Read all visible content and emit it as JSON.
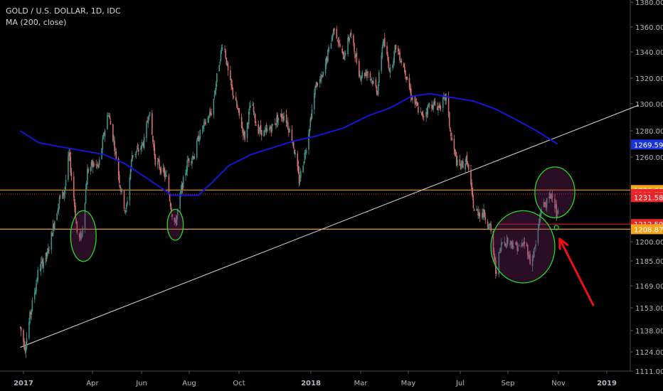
{
  "header": {
    "symbol_title": "GOLD / U.S. DOLLAR, 1D, IDC",
    "indicator_label": "MA (200, close)"
  },
  "colors": {
    "background": "#000000",
    "candle_up": "#3f8f86",
    "candle_down": "#d06e6e",
    "ma_line": "#1515d6",
    "trend_line": "#c8c8c8",
    "support_line": "#e69a2e",
    "annotation_circle": "#22dd22",
    "arrow": "#ee1111",
    "axis_text": "#b2b5be"
  },
  "chart_data": {
    "type": "candlestick",
    "title": "GOLD / U.S. DOLLAR, 1D, IDC",
    "y_axis": {
      "position": "right",
      "tick_labels": [
        "1380.00",
        "1360.00",
        "1340.00",
        "1320.00",
        "1300.00",
        "1280.00",
        "1260.00",
        "1200.00",
        "1185.00",
        "1169.00",
        "1153.00",
        "1138.00",
        "1124.00",
        "1111.00"
      ],
      "ylim": [
        1111,
        1382
      ]
    },
    "x_axis": {
      "tick_labels": [
        "2017",
        "Apr",
        "Jun",
        "Aug",
        "Oct",
        "2018",
        "Mar",
        "May",
        "Jul",
        "Sep",
        "Nov",
        "2019"
      ],
      "bold_labels": [
        "2017",
        "2018",
        "2019"
      ]
    },
    "price_tags": [
      {
        "value": "1269.59",
        "price": 1269.59,
        "color": "#1a33d8"
      },
      {
        "value": "1236.66",
        "price": 1236.66,
        "color": "#f7a21b"
      },
      {
        "value": "1233.77",
        "price": 1233.77,
        "color": "#e8262a"
      },
      {
        "value": "1231.58",
        "price": 1231.58,
        "color": "#e8262a"
      },
      {
        "value": "1212.50",
        "price": 1212.5,
        "color": "#e8262a"
      },
      {
        "value": "1208.87",
        "price": 1208.87,
        "color": "#f7a21b"
      }
    ],
    "horizontal_levels": [
      {
        "name": "upper-resistance",
        "price": 1236.66,
        "color": "#e69a2e"
      },
      {
        "name": "lower-support",
        "price": 1208.87,
        "color": "#e69a2e"
      }
    ],
    "price_path": [
      [
        "2016-12-28",
        1140
      ],
      [
        "2017-01-03",
        1127
      ],
      [
        "2017-01-10",
        1150
      ],
      [
        "2017-01-20",
        1180
      ],
      [
        "2017-01-31",
        1190
      ],
      [
        "2017-02-08",
        1213
      ],
      [
        "2017-02-15",
        1230
      ],
      [
        "2017-02-21",
        1235
      ],
      [
        "2017-02-27",
        1262
      ],
      [
        "2017-03-05",
        1232
      ],
      [
        "2017-03-10",
        1200
      ],
      [
        "2017-03-15",
        1205
      ],
      [
        "2017-03-22",
        1250
      ],
      [
        "2017-03-29",
        1255
      ],
      [
        "2017-04-05",
        1253
      ],
      [
        "2017-04-12",
        1278
      ],
      [
        "2017-04-17",
        1294
      ],
      [
        "2017-04-24",
        1272
      ],
      [
        "2017-05-02",
        1240
      ],
      [
        "2017-05-09",
        1220
      ],
      [
        "2017-05-17",
        1262
      ],
      [
        "2017-05-25",
        1265
      ],
      [
        "2017-06-01",
        1272
      ],
      [
        "2017-06-07",
        1295
      ],
      [
        "2017-06-15",
        1258
      ],
      [
        "2017-06-22",
        1252
      ],
      [
        "2017-06-29",
        1245
      ],
      [
        "2017-07-06",
        1220
      ],
      [
        "2017-07-10",
        1212
      ],
      [
        "2017-07-17",
        1235
      ],
      [
        "2017-07-26",
        1258
      ],
      [
        "2017-08-03",
        1262
      ],
      [
        "2017-08-08",
        1275
      ],
      [
        "2017-08-16",
        1285
      ],
      [
        "2017-08-25",
        1295
      ],
      [
        "2017-09-01",
        1325
      ],
      [
        "2017-09-08",
        1350
      ],
      [
        "2017-09-15",
        1320
      ],
      [
        "2017-09-26",
        1295
      ],
      [
        "2017-10-05",
        1275
      ],
      [
        "2017-10-13",
        1302
      ],
      [
        "2017-10-20",
        1282
      ],
      [
        "2017-10-30",
        1278
      ],
      [
        "2017-11-08",
        1283
      ],
      [
        "2017-11-16",
        1290
      ],
      [
        "2017-11-24",
        1292
      ],
      [
        "2017-12-04",
        1272
      ],
      [
        "2017-12-12",
        1243
      ],
      [
        "2017-12-20",
        1265
      ],
      [
        "2018-01-02",
        1315
      ],
      [
        "2018-01-10",
        1320
      ],
      [
        "2018-01-25",
        1360
      ],
      [
        "2018-02-05",
        1335
      ],
      [
        "2018-02-14",
        1355
      ],
      [
        "2018-02-26",
        1322
      ],
      [
        "2018-03-08",
        1325
      ],
      [
        "2018-03-20",
        1310
      ],
      [
        "2018-03-27",
        1350
      ],
      [
        "2018-04-05",
        1325
      ],
      [
        "2018-04-12",
        1345
      ],
      [
        "2018-04-24",
        1325
      ],
      [
        "2018-05-02",
        1305
      ],
      [
        "2018-05-15",
        1290
      ],
      [
        "2018-05-25",
        1300
      ],
      [
        "2018-06-05",
        1298
      ],
      [
        "2018-06-14",
        1305
      ],
      [
        "2018-06-20",
        1275
      ],
      [
        "2018-06-29",
        1252
      ],
      [
        "2018-07-10",
        1258
      ],
      [
        "2018-07-19",
        1222
      ],
      [
        "2018-07-31",
        1220
      ],
      [
        "2018-08-08",
        1210
      ],
      [
        "2018-08-15",
        1178
      ],
      [
        "2018-08-23",
        1200
      ],
      [
        "2018-08-31",
        1200
      ],
      [
        "2018-09-07",
        1198
      ],
      [
        "2018-09-14",
        1195
      ],
      [
        "2018-09-21",
        1200
      ],
      [
        "2018-09-28",
        1183
      ],
      [
        "2018-10-05",
        1200
      ],
      [
        "2018-10-11",
        1225
      ],
      [
        "2018-10-19",
        1228
      ],
      [
        "2018-10-26",
        1236
      ],
      [
        "2018-10-31",
        1215
      ],
      [
        "2018-11-02",
        1233
      ]
    ],
    "ma_200": [
      [
        "2016-12-28",
        1280
      ],
      [
        "2017-01-20",
        1271
      ],
      [
        "2017-02-15",
        1268
      ],
      [
        "2017-03-15",
        1265
      ],
      [
        "2017-04-12",
        1262
      ],
      [
        "2017-05-09",
        1255
      ],
      [
        "2017-06-07",
        1244
      ],
      [
        "2017-07-06",
        1233
      ],
      [
        "2017-08-08",
        1233
      ],
      [
        "2017-08-25",
        1242
      ],
      [
        "2017-09-15",
        1254
      ],
      [
        "2017-10-13",
        1262
      ],
      [
        "2017-11-08",
        1267
      ],
      [
        "2017-12-04",
        1272
      ],
      [
        "2018-01-02",
        1276
      ],
      [
        "2018-02-05",
        1282
      ],
      [
        "2018-03-08",
        1291
      ],
      [
        "2018-04-05",
        1297
      ],
      [
        "2018-05-02",
        1306
      ],
      [
        "2018-05-25",
        1308
      ],
      [
        "2018-06-20",
        1305
      ],
      [
        "2018-07-19",
        1302
      ],
      [
        "2018-08-15",
        1296
      ],
      [
        "2018-09-07",
        1289
      ],
      [
        "2018-10-05",
        1280
      ],
      [
        "2018-10-31",
        1270
      ]
    ],
    "trend_line": [
      [
        "2016-12-28",
        1127
      ],
      [
        "2019-02-10",
        1299
      ]
    ],
    "annotations": [
      {
        "type": "ellipse",
        "name": "circle-mar-2017",
        "center": [
          "2017-03-17",
          1204
        ],
        "rx_days": 16,
        "ry_price": 18
      },
      {
        "type": "ellipse",
        "name": "circle-jul-2017",
        "center": [
          "2017-07-10",
          1212
        ],
        "rx_days": 10,
        "ry_price": 11
      },
      {
        "type": "ellipse",
        "name": "circle-aug-oct-2018",
        "center": [
          "2018-09-18",
          1196
        ],
        "rx_days": 40,
        "ry_price": 26
      },
      {
        "type": "ellipse",
        "name": "circle-oct-2018",
        "center": [
          "2018-10-28",
          1235
        ],
        "rx_days": 25,
        "ry_price": 18
      },
      {
        "type": "small-circle",
        "name": "small-circle-oct-31",
        "center": [
          "2018-10-30",
          1210
        ]
      },
      {
        "type": "arrow",
        "name": "red-arrow",
        "from": [
          "2018-12-15",
          1155
        ],
        "to": [
          "2018-11-03",
          1202
        ]
      }
    ]
  }
}
